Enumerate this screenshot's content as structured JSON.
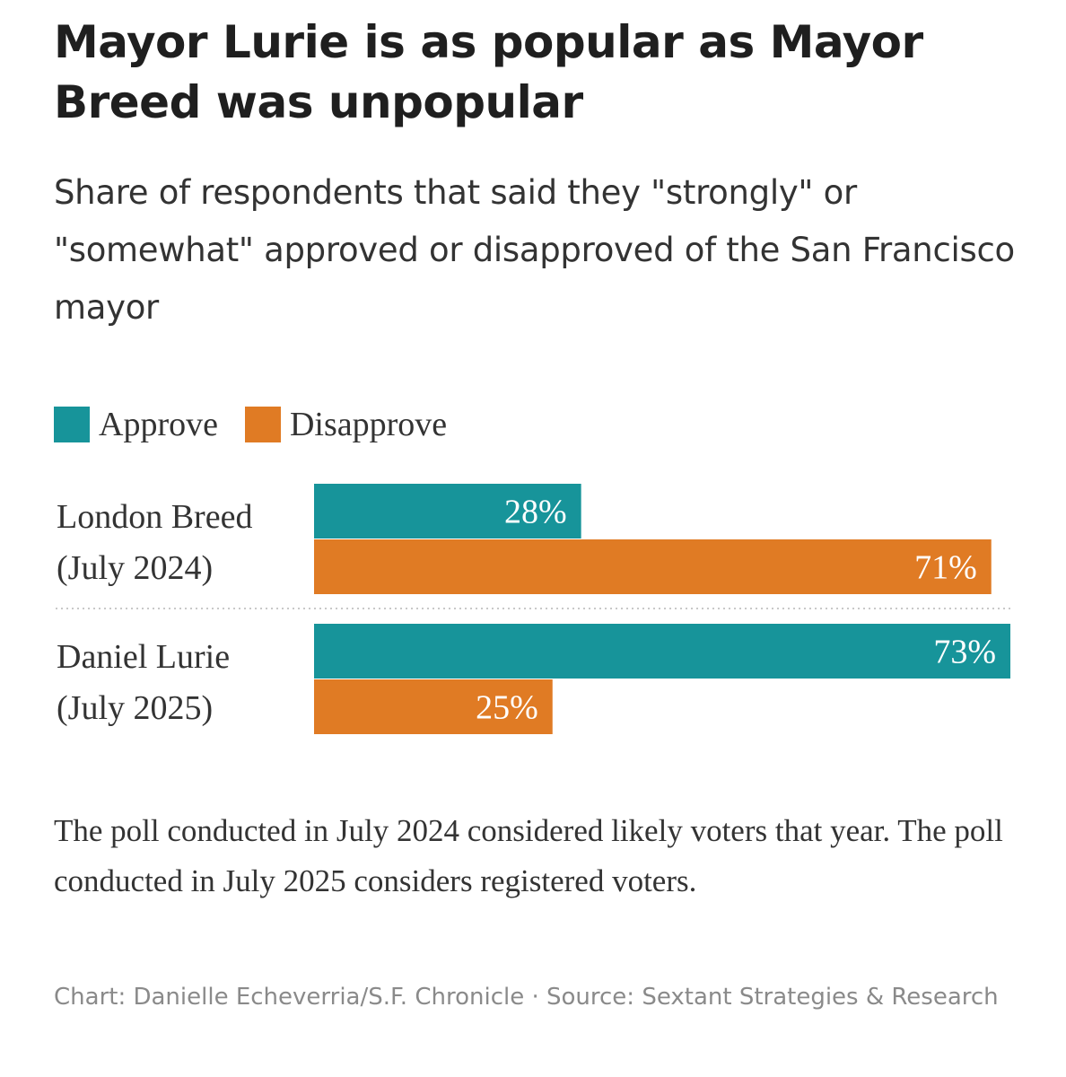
{
  "title": "Mayor Lurie is as popular as Mayor Breed was unpopular",
  "subtitle": "Share of respondents that said they \"strongly\" or \"somewhat\" approved or disapproved of the San Francisco mayor",
  "note": "The poll conducted in July 2024 considered likely voters that year. The poll conducted in July 2025 considers registered voters.",
  "credit": "Chart: Danielle Echeverria/S.F. Chronicle · Source: Sextant Strategies & Research",
  "colors": {
    "approve": "#17949a",
    "disapprove": "#e07b24",
    "divider": "#c8c8c8"
  },
  "chart_data": {
    "type": "bar",
    "orientation": "horizontal",
    "legend_position": "top-left",
    "categories": [
      {
        "line1": "London Breed",
        "line2": "(July 2024)"
      },
      {
        "line1": "Daniel Lurie",
        "line2": "(July 2025)"
      }
    ],
    "series": [
      {
        "name": "Approve",
        "color": "#17949a",
        "values": [
          28,
          73
        ],
        "labels": [
          "28%",
          "73%"
        ]
      },
      {
        "name": "Disapprove",
        "color": "#e07b24",
        "values": [
          71,
          25
        ],
        "labels": [
          "71%",
          "25%"
        ]
      }
    ],
    "xlim": [
      0,
      73
    ],
    "grid": false
  }
}
